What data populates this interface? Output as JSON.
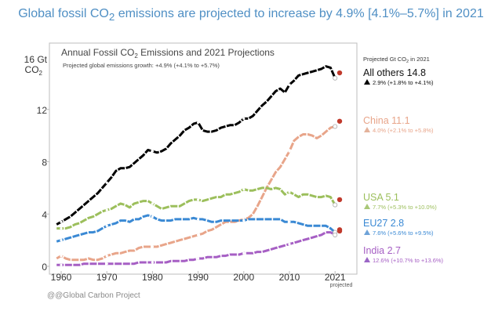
{
  "headline": {
    "pre": "Global fossil CO",
    "sub": "2",
    "post": " emissions are projected to increase by 4.9% [4.1%–5.7%] in 2021"
  },
  "credit": "@@Global Carbon Project",
  "chart_data": {
    "type": "line",
    "title": {
      "pre": "Annual Fossil CO",
      "sub": "2",
      "post": " Emissions and 2021 Projections"
    },
    "subtitle": "Projected global emissions growth: +4.9% (+4.1% to +5.7%)",
    "ylabel_top": "16 Gt",
    "ylabel_unit": "CO",
    "ylabel_sub": "2",
    "ylim": [
      0,
      16
    ],
    "xlim": [
      1959,
      2022
    ],
    "yticks": [
      0,
      4,
      8,
      12
    ],
    "xticks": [
      1960,
      1970,
      1980,
      1990,
      2000,
      2010,
      2020
    ],
    "xtick_extra": "projected",
    "grid": false,
    "legend_header": {
      "pre": "Projected Gt CO",
      "sub": "2",
      "post": " in 2021"
    },
    "x": [
      1959,
      1960,
      1961,
      1962,
      1963,
      1964,
      1965,
      1966,
      1967,
      1968,
      1969,
      1970,
      1971,
      1972,
      1973,
      1974,
      1975,
      1976,
      1977,
      1978,
      1979,
      1980,
      1981,
      1982,
      1983,
      1984,
      1985,
      1986,
      1987,
      1988,
      1989,
      1990,
      1991,
      1992,
      1993,
      1994,
      1995,
      1996,
      1997,
      1998,
      1999,
      2000,
      2001,
      2002,
      2003,
      2004,
      2005,
      2006,
      2007,
      2008,
      2009,
      2010,
      2011,
      2012,
      2013,
      2014,
      2015,
      2016,
      2017,
      2018,
      2019,
      2020
    ],
    "series": [
      {
        "name": "All others",
        "label": "All others 14.8",
        "growth": "2.9% (+1.8% to +4.1%)",
        "color": "#000000",
        "marker_color": "#000000",
        "projected": 14.8,
        "values": [
          3.2,
          3.4,
          3.6,
          3.8,
          4.1,
          4.4,
          4.7,
          5.0,
          5.3,
          5.6,
          6.0,
          6.4,
          6.8,
          7.3,
          7.5,
          7.5,
          7.6,
          7.9,
          8.2,
          8.5,
          8.9,
          8.8,
          8.7,
          8.8,
          9.0,
          9.4,
          9.7,
          10.0,
          10.4,
          10.6,
          10.9,
          11.0,
          10.4,
          10.3,
          10.3,
          10.4,
          10.6,
          10.7,
          10.8,
          10.8,
          11.0,
          11.3,
          11.3,
          11.5,
          11.9,
          12.3,
          12.6,
          13.0,
          13.4,
          13.6,
          13.3,
          13.9,
          14.2,
          14.6,
          14.7,
          14.8,
          14.9,
          15.0,
          15.1,
          15.3,
          15.2,
          14.4
        ]
      },
      {
        "name": "China",
        "label": "China 11.1",
        "growth": "4.0% (+2.1% to +5.8%)",
        "color": "#e8a58a",
        "marker_color": "#e4b29b",
        "projected": 11.1,
        "values": [
          0.6,
          0.8,
          0.6,
          0.5,
          0.5,
          0.5,
          0.5,
          0.6,
          0.5,
          0.5,
          0.6,
          0.8,
          0.9,
          1.0,
          1.0,
          1.1,
          1.2,
          1.2,
          1.4,
          1.5,
          1.5,
          1.5,
          1.5,
          1.6,
          1.7,
          1.8,
          1.9,
          2.0,
          2.1,
          2.2,
          2.3,
          2.4,
          2.5,
          2.7,
          2.8,
          3.0,
          3.2,
          3.4,
          3.4,
          3.4,
          3.5,
          3.6,
          3.7,
          4.0,
          4.6,
          5.3,
          6.0,
          6.6,
          7.2,
          7.6,
          8.2,
          8.8,
          9.6,
          9.9,
          10.1,
          10.1,
          10.0,
          9.8,
          10.0,
          10.3,
          10.6,
          10.7
        ]
      },
      {
        "name": "USA",
        "label": "USA 5.1",
        "growth": "7.7% (+5.3% to +10.0%)",
        "color": "#9cbf5c",
        "marker_color": "#a9c878",
        "projected": 5.1,
        "values": [
          2.9,
          2.9,
          2.9,
          3.0,
          3.2,
          3.3,
          3.5,
          3.7,
          3.8,
          4.0,
          4.2,
          4.3,
          4.4,
          4.6,
          4.8,
          4.7,
          4.5,
          4.8,
          4.9,
          5.0,
          5.0,
          4.8,
          4.6,
          4.4,
          4.5,
          4.6,
          4.6,
          4.6,
          4.8,
          5.0,
          5.1,
          5.1,
          5.0,
          5.1,
          5.2,
          5.3,
          5.3,
          5.5,
          5.5,
          5.6,
          5.7,
          5.9,
          5.8,
          5.8,
          5.9,
          6.0,
          6.0,
          5.9,
          6.0,
          5.9,
          5.5,
          5.7,
          5.5,
          5.3,
          5.5,
          5.5,
          5.4,
          5.3,
          5.3,
          5.4,
          5.3,
          4.7
        ]
      },
      {
        "name": "EU27",
        "label": "EU27 2.8",
        "growth": "7.6% (+5.6% to +9.5%)",
        "color": "#3a89d4",
        "marker_color": "#6ea3d8",
        "projected": 2.8,
        "values": [
          1.9,
          2.0,
          2.1,
          2.2,
          2.3,
          2.4,
          2.5,
          2.6,
          2.6,
          2.7,
          2.9,
          3.1,
          3.2,
          3.3,
          3.5,
          3.5,
          3.4,
          3.6,
          3.6,
          3.8,
          3.9,
          3.8,
          3.6,
          3.5,
          3.5,
          3.5,
          3.6,
          3.6,
          3.6,
          3.6,
          3.7,
          3.6,
          3.6,
          3.5,
          3.4,
          3.4,
          3.5,
          3.5,
          3.5,
          3.5,
          3.5,
          3.5,
          3.6,
          3.6,
          3.6,
          3.6,
          3.6,
          3.6,
          3.6,
          3.6,
          3.4,
          3.4,
          3.4,
          3.3,
          3.2,
          3.1,
          3.1,
          3.1,
          3.1,
          3.1,
          2.9,
          2.6
        ]
      },
      {
        "name": "India",
        "label": "India 2.7",
        "growth": "12.6% (+10.7% to +13.6%)",
        "color": "#a65fc4",
        "marker_color": "#9b66c6",
        "projected": 2.7,
        "values": [
          0.1,
          0.1,
          0.1,
          0.1,
          0.1,
          0.1,
          0.2,
          0.2,
          0.2,
          0.2,
          0.2,
          0.2,
          0.2,
          0.2,
          0.2,
          0.2,
          0.2,
          0.2,
          0.3,
          0.3,
          0.3,
          0.3,
          0.3,
          0.3,
          0.3,
          0.4,
          0.4,
          0.4,
          0.4,
          0.5,
          0.5,
          0.6,
          0.6,
          0.7,
          0.7,
          0.7,
          0.8,
          0.8,
          0.9,
          0.9,
          0.9,
          1.0,
          1.0,
          1.0,
          1.1,
          1.1,
          1.2,
          1.3,
          1.4,
          1.5,
          1.6,
          1.7,
          1.8,
          1.9,
          2.0,
          2.1,
          2.2,
          2.3,
          2.4,
          2.6,
          2.6,
          2.4
        ]
      }
    ]
  }
}
